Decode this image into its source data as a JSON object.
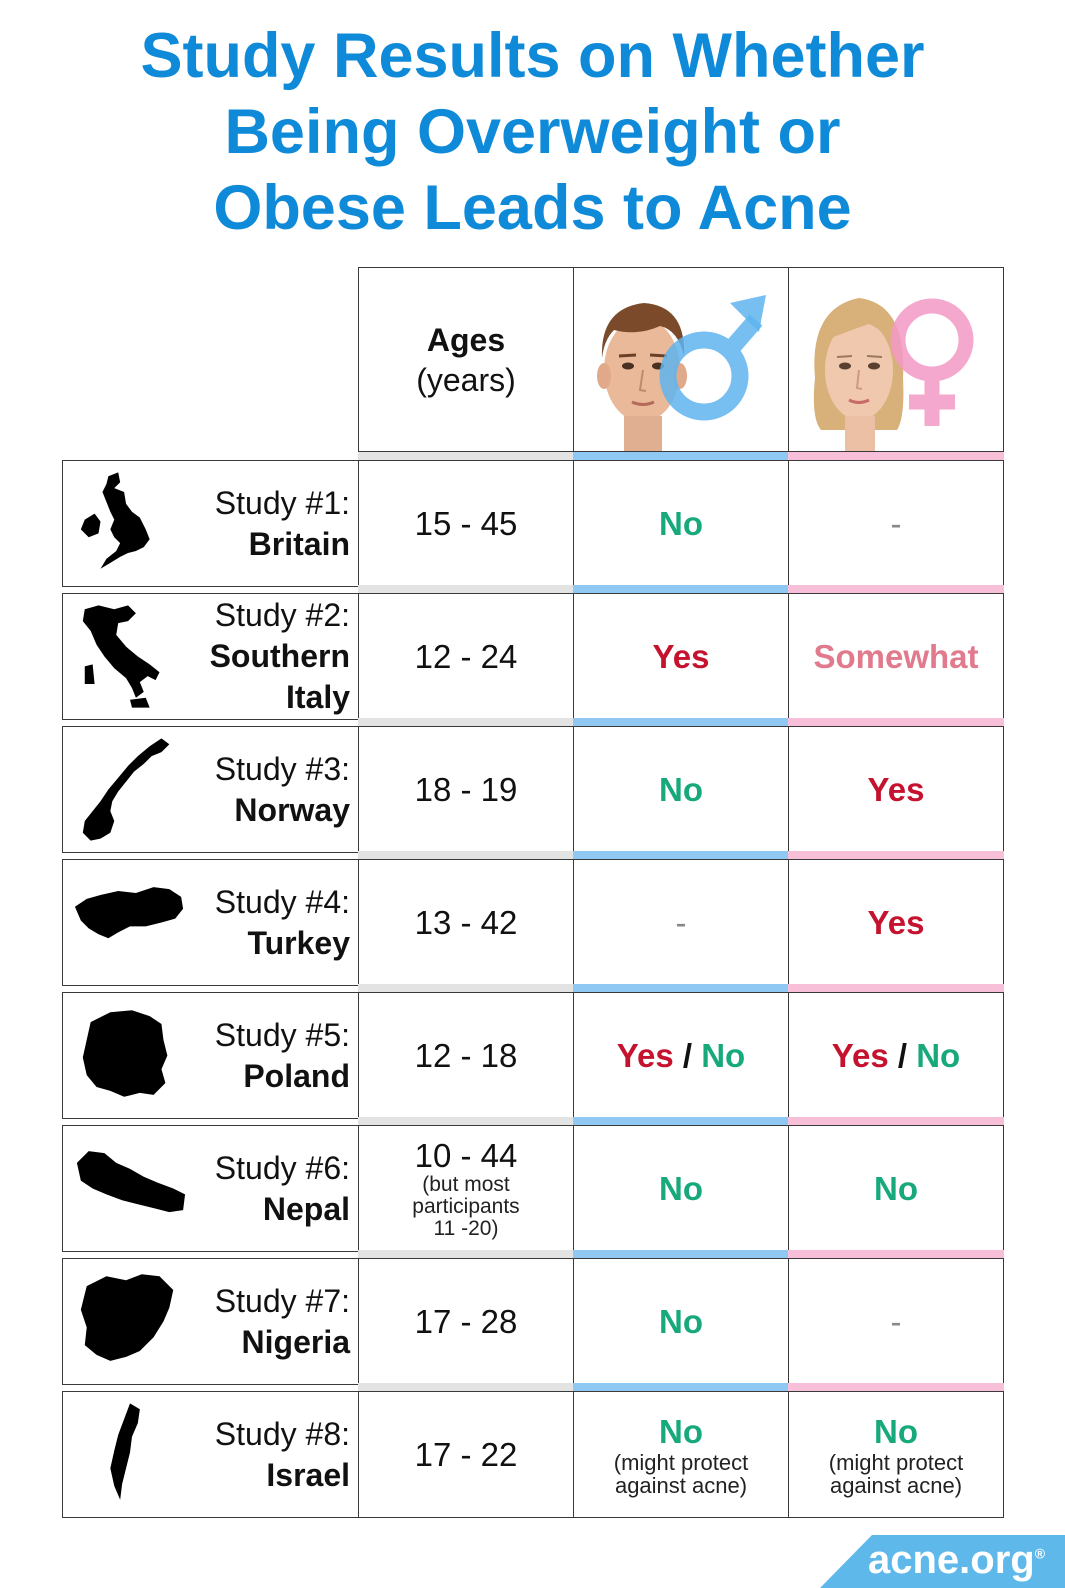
{
  "title_lines": [
    "Study Results on Whether",
    "Being Overweight or",
    "Obese Leads to Acne"
  ],
  "header": {
    "ages_label": "Ages",
    "ages_unit": "(years)",
    "male_symbol": "♂",
    "female_symbol": "♀"
  },
  "colors": {
    "title": "#0f8ad8",
    "yes": "#c4122f",
    "no": "#17a87b",
    "somewhat": "#e07a8c",
    "male_accent": "#8ec8f3",
    "female_accent": "#f7bfd8"
  },
  "rows": [
    {
      "label": "Study #1:",
      "country": [
        "Britain"
      ],
      "ages": "15 - 45",
      "ages_note": [],
      "male": [
        {
          "text": "No",
          "kind": "no"
        }
      ],
      "male_note": "",
      "female": [
        {
          "text": "-",
          "kind": "dash"
        }
      ],
      "female_note": "",
      "map_icon": "britain-map-icon"
    },
    {
      "label": "Study #2:",
      "country": [
        "Southern",
        "Italy"
      ],
      "ages": "12 - 24",
      "ages_note": [],
      "male": [
        {
          "text": "Yes",
          "kind": "yes"
        }
      ],
      "male_note": "",
      "female": [
        {
          "text": "Somewhat",
          "kind": "somewhat"
        }
      ],
      "female_note": "",
      "map_icon": "italy-map-icon"
    },
    {
      "label": "Study #3:",
      "country": [
        "Norway"
      ],
      "ages": "18 - 19",
      "ages_note": [],
      "male": [
        {
          "text": "No",
          "kind": "no"
        }
      ],
      "male_note": "",
      "female": [
        {
          "text": "Yes",
          "kind": "yes"
        }
      ],
      "female_note": "",
      "map_icon": "norway-map-icon"
    },
    {
      "label": "Study #4:",
      "country": [
        "Turkey"
      ],
      "ages": "13 - 42",
      "ages_note": [],
      "male": [
        {
          "text": "-",
          "kind": "dash"
        }
      ],
      "male_note": "",
      "female": [
        {
          "text": "Yes",
          "kind": "yes"
        }
      ],
      "female_note": "",
      "map_icon": "turkey-map-icon"
    },
    {
      "label": "Study #5:",
      "country": [
        "Poland"
      ],
      "ages": "12 - 18",
      "ages_note": [],
      "male": [
        {
          "text": "Yes",
          "kind": "yes"
        },
        {
          "text": " / ",
          "kind": "slash"
        },
        {
          "text": "No",
          "kind": "no"
        }
      ],
      "male_note": "",
      "female": [
        {
          "text": "Yes",
          "kind": "yes"
        },
        {
          "text": " / ",
          "kind": "slash"
        },
        {
          "text": "No",
          "kind": "no"
        }
      ],
      "female_note": "",
      "map_icon": "poland-map-icon"
    },
    {
      "label": "Study #6:",
      "country": [
        "Nepal"
      ],
      "ages": "10 - 44",
      "ages_note": [
        "(but most",
        "participants",
        "11 -20)"
      ],
      "male": [
        {
          "text": "No",
          "kind": "no"
        }
      ],
      "male_note": "",
      "female": [
        {
          "text": "No",
          "kind": "no"
        }
      ],
      "female_note": "",
      "map_icon": "nepal-map-icon"
    },
    {
      "label": "Study #7:",
      "country": [
        "Nigeria"
      ],
      "ages": "17 - 28",
      "ages_note": [],
      "male": [
        {
          "text": "No",
          "kind": "no"
        }
      ],
      "male_note": "",
      "female": [
        {
          "text": "-",
          "kind": "dash"
        }
      ],
      "female_note": "",
      "map_icon": "nigeria-map-icon"
    },
    {
      "label": "Study #8:",
      "country": [
        "Israel"
      ],
      "ages": "17 - 22",
      "ages_note": [],
      "male": [
        {
          "text": "No",
          "kind": "no"
        }
      ],
      "male_note": "(might protect against acne)",
      "female": [
        {
          "text": "No",
          "kind": "no"
        }
      ],
      "female_note": "(might protect against acne)",
      "map_icon": "israel-map-icon"
    }
  ],
  "logo_text": "acne.org",
  "logo_mark": "®"
}
